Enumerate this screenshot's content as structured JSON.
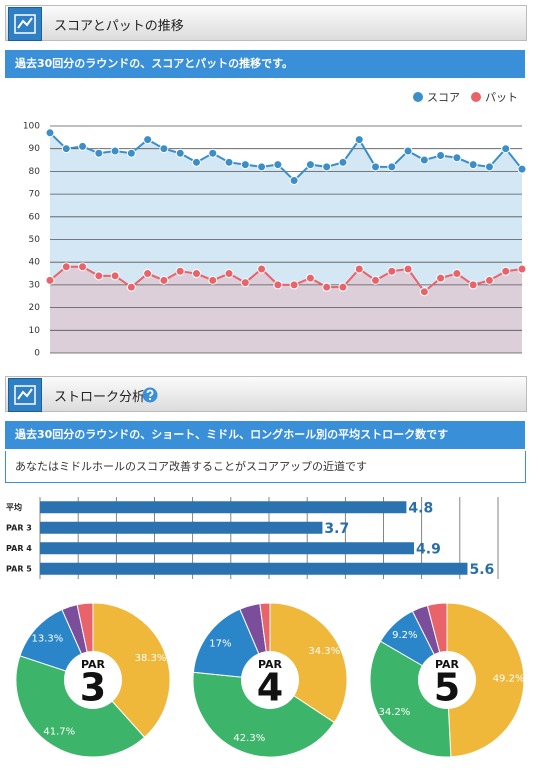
{
  "sections": [
    {
      "title": "スコアとパットの推移",
      "description": "過去30回分のラウンドの、スコアとパットの推移です。"
    },
    {
      "title": "ストローク分析",
      "description": "過去30回分のラウンドの、ショート、ミドル、ロングホール別の平均ストローク数です",
      "message": "あなたはミドルホールのスコア改善することがスコアアップの近道です"
    }
  ],
  "chart_data": [
    {
      "type": "line",
      "legend": "top-right",
      "grid": true,
      "ylim": [
        0,
        100
      ],
      "yticks": [
        0,
        10,
        20,
        30,
        40,
        50,
        60,
        70,
        80,
        90,
        100
      ],
      "series": [
        {
          "name": "スコア",
          "color": "#3b8ec8",
          "fill": "#d4e7f5",
          "values": [
            97,
            90,
            91,
            88,
            89,
            88,
            94,
            90,
            88,
            84,
            88,
            84,
            83,
            82,
            83,
            76,
            83,
            82,
            84,
            94,
            82,
            82,
            89,
            85,
            87,
            86,
            83,
            82,
            90,
            81
          ]
        },
        {
          "name": "パット",
          "color": "#e8636a",
          "fill": "#dccfda",
          "values": [
            32,
            38,
            38,
            34,
            34,
            29,
            35,
            32,
            36,
            35,
            32,
            35,
            31,
            37,
            30,
            30,
            33,
            29,
            29,
            37,
            32,
            36,
            37,
            27,
            33,
            35,
            30,
            32,
            36,
            37
          ]
        }
      ]
    },
    {
      "type": "hbar",
      "grid": true,
      "color": "#2a72b0",
      "label_color": "#2a6ea8",
      "categories": [
        "平均",
        "PAR 3",
        "PAR 4",
        "PAR 5"
      ],
      "values": [
        4.8,
        3.7,
        4.9,
        5.6
      ],
      "xlim": [
        0,
        6
      ],
      "xticks": [
        0,
        0.5,
        1,
        1.5,
        2,
        2.5,
        3,
        3.5,
        4,
        4.5,
        5,
        5.5,
        6
      ]
    },
    {
      "type": "pie",
      "center_label": "PAR",
      "center_value": "3",
      "colors": [
        "#f0b83a",
        "#3cb46a",
        "#2a86c9",
        "#7b4e9c",
        "#e8636a"
      ],
      "values": [
        38.3,
        41.7,
        13.3,
        3.3,
        3.3
      ],
      "value_labels": [
        "38.3%",
        "41.7%",
        "13.3%",
        null,
        null
      ]
    },
    {
      "type": "pie",
      "center_label": "PAR",
      "center_value": "4",
      "colors": [
        "#f0b83a",
        "#3cb46a",
        "#2a86c9",
        "#7b4e9c",
        "#e8636a"
      ],
      "values": [
        34.3,
        42.3,
        17,
        4.3,
        2.1
      ],
      "value_labels": [
        "34.3%",
        "42.3%",
        "17%",
        null,
        null
      ]
    },
    {
      "type": "pie",
      "center_label": "PAR",
      "center_value": "5",
      "colors": [
        "#f0b83a",
        "#3cb46a",
        "#2a86c9",
        "#7b4e9c",
        "#e8636a"
      ],
      "values": [
        49.2,
        34.2,
        9.2,
        3.3,
        4.1
      ],
      "value_labels": [
        "49.2%",
        "34.2%",
        "9.2%",
        null,
        null
      ]
    }
  ]
}
